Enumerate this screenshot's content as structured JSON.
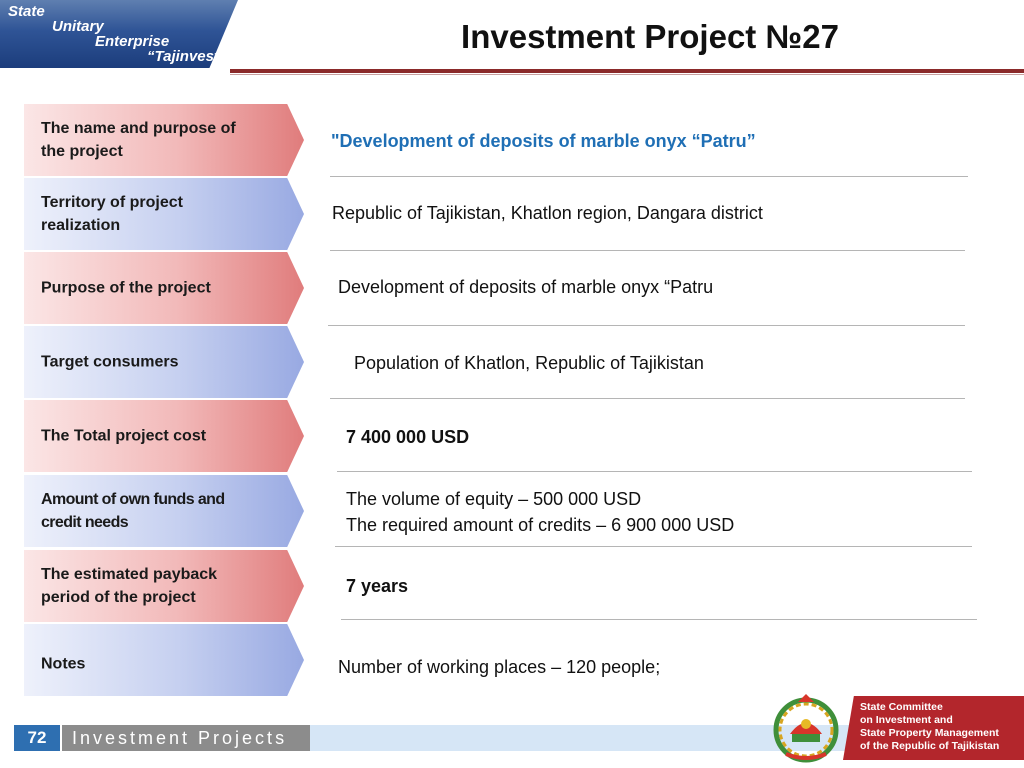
{
  "header": {
    "logo_lines": [
      "State",
      "Unitary",
      "Enterprise",
      "“Tajinvest”"
    ],
    "title": "Investment  Project №27"
  },
  "rows": [
    {
      "label": "The name and purpose of the project",
      "value": "\"Development of deposits of marble onyx “Patru”"
    },
    {
      "label": "Territory of project realization",
      "value": "Republic of Tajikistan, Khatlon region, Dangara district"
    },
    {
      "label": "Purpose of the project",
      "value": "Development of deposits of marble onyx “Patru"
    },
    {
      "label": "Target consumers",
      "value": "Population of Khatlon, Republic of Tajikistan"
    },
    {
      "label": "The Total project cost",
      "value": "7 400 000 USD"
    },
    {
      "label": "Amount of own funds and credit needs",
      "value_lines": [
        "The volume of equity – 500 000 USD",
        "The required amount of credits – 6 900 000 USD"
      ]
    },
    {
      "label": "The estimated payback period of the project",
      "value": "7 years"
    },
    {
      "label": "Notes",
      "value": "Number of working places –  120 people;"
    }
  ],
  "footer": {
    "page_number": "72",
    "section": "Investment Projects",
    "committee_lines": [
      "State Committee",
      "on Investment and",
      "State Property Management",
      "of the Republic of Tajikistan"
    ]
  },
  "colors": {
    "highlight": "#1f6fb5",
    "label_red": "#e07c7c",
    "label_blue": "#98a9e2",
    "header_rule": "#8b2a2a",
    "committee_red": "#b3262c"
  },
  "icons": [
    "emblem-icon"
  ]
}
